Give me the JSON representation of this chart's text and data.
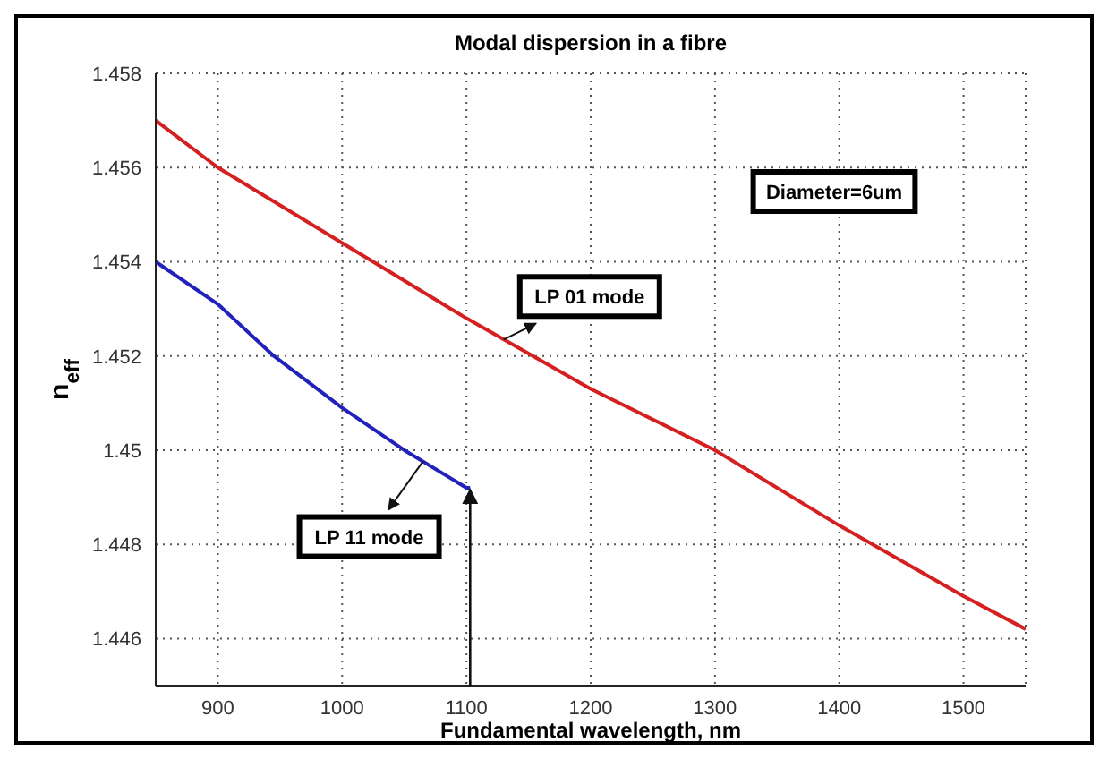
{
  "chart_data": {
    "type": "line",
    "title": "Modal dispersion in a fibre",
    "xlabel": "Fundamental wavelength, nm",
    "ylabel": "n$_{eff}$",
    "series": [
      {
        "name": "LP 01 mode",
        "color": "#d42020",
        "x": [
          850,
          900,
          1000,
          1100,
          1200,
          1300,
          1400,
          1500,
          1550
        ],
        "values": [
          1.457,
          1.456,
          1.4544,
          1.4528,
          1.4513,
          1.45,
          1.4484,
          1.4469,
          1.4462
        ]
      },
      {
        "name": "LP 11 mode",
        "color": "#2222bb",
        "x": [
          850,
          900,
          945,
          1000,
          1050,
          1100,
          1103
        ],
        "values": [
          1.454,
          1.4531,
          1.452,
          1.4509,
          1.45,
          1.4492,
          1.4492
        ]
      }
    ],
    "annotations": [
      "Diameter=6um"
    ],
    "xlim": [
      850,
      1550
    ],
    "xticks": [
      900,
      1000,
      1100,
      1200,
      1300,
      1400,
      1500
    ],
    "ylim": [
      1.445,
      1.458
    ],
    "yticks": [
      1.446,
      1.448,
      1.45,
      1.452,
      1.454,
      1.456,
      1.458
    ],
    "grid": true,
    "marker": "none",
    "line_style": "solid"
  }
}
